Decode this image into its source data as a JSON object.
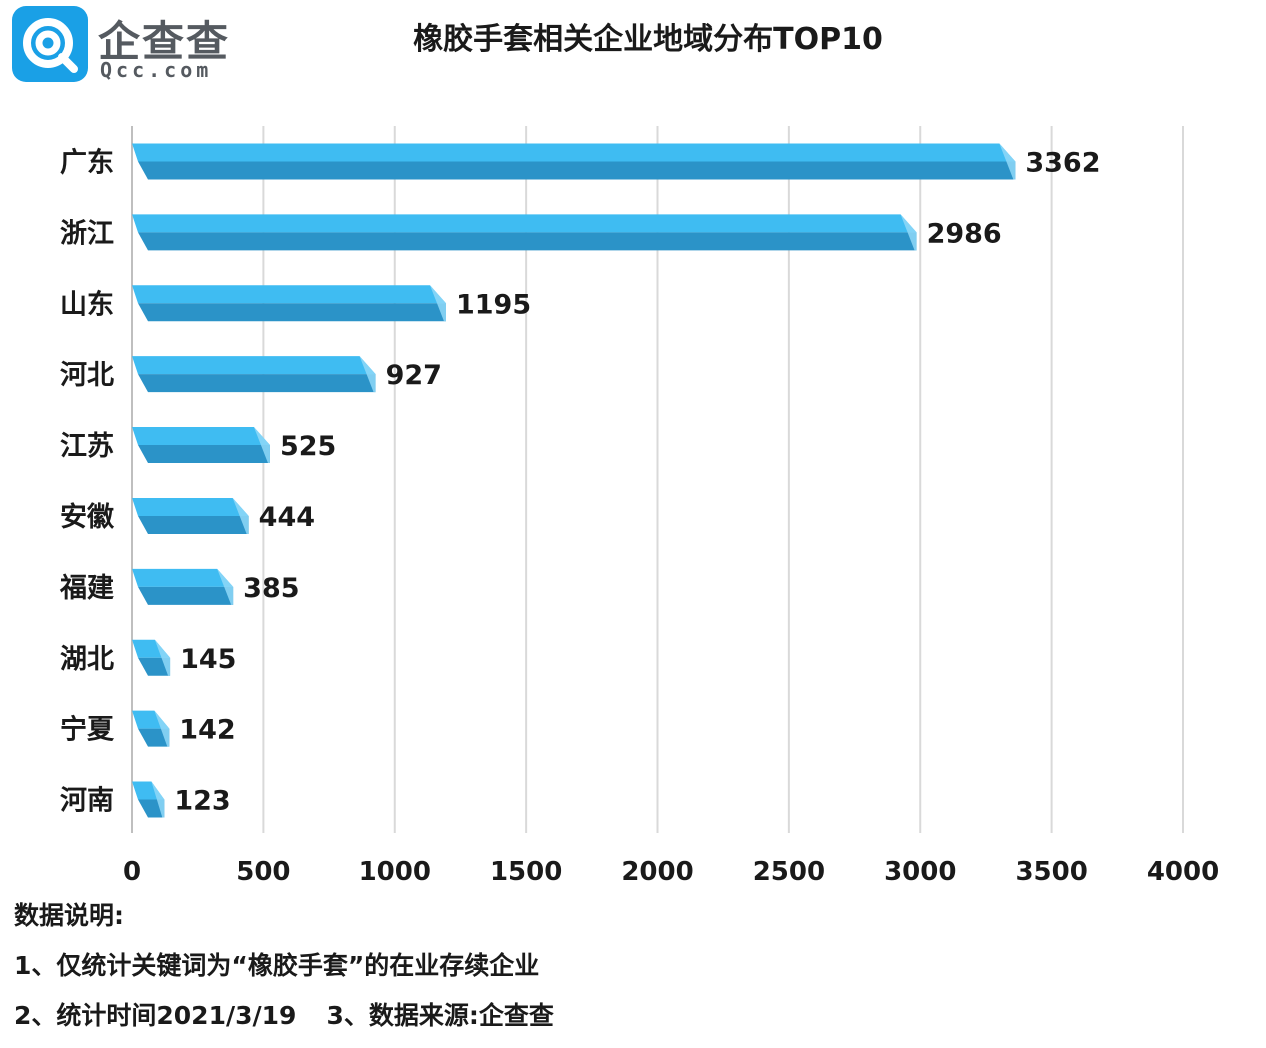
{
  "brand": {
    "name_cn": "企查查",
    "name_en": "Qcc.com"
  },
  "title": "橡胶手套相关企业地域分布TOP10",
  "chart_data": {
    "type": "bar",
    "orientation": "horizontal",
    "categories": [
      "广东",
      "浙江",
      "山东",
      "河北",
      "江苏",
      "安徽",
      "福建",
      "湖北",
      "宁夏",
      "河南"
    ],
    "values": [
      3362,
      2986,
      1195,
      927,
      525,
      444,
      385,
      145,
      142,
      123
    ],
    "x_ticks": [
      0,
      500,
      1000,
      1500,
      2000,
      2500,
      3000,
      3500,
      4000
    ],
    "xlim": [
      0,
      4000
    ],
    "grid": true,
    "data_labels": true,
    "colors": {
      "bar_top": "#3fbcf2",
      "bar_bottom": "#2b93c8",
      "bar_end": "#8fd8f8",
      "grid": "#d9d9d9"
    }
  },
  "notes": {
    "heading": "数据说明:",
    "line1": "1、仅统计关键词为“橡胶手套”的在业存续企业",
    "line2a": "2、统计时间2021/3/19",
    "line2b": "3、数据来源:企查查"
  }
}
